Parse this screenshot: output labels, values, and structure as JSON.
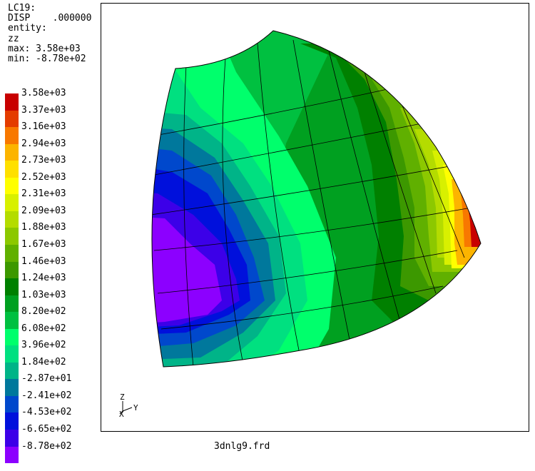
{
  "header": {
    "load_case": "LC19:",
    "disp_label": "DISP",
    "disp_value": ".000000",
    "entity_label": "entity:",
    "component": "zz",
    "max": "max: 3.58e+03",
    "min": "min: -8.78e+02"
  },
  "legend": [
    {
      "label": "3.58e+03",
      "color": "#c80000"
    },
    {
      "label": "3.37e+03",
      "color": "#e43c00"
    },
    {
      "label": "3.16e+03",
      "color": "#f87800"
    },
    {
      "label": "2.94e+03",
      "color": "#fcb400"
    },
    {
      "label": "2.73e+03",
      "color": "#ffe000"
    },
    {
      "label": "2.52e+03",
      "color": "#ffff00"
    },
    {
      "label": "2.31e+03",
      "color": "#d8f000"
    },
    {
      "label": "2.09e+03",
      "color": "#b4dc00"
    },
    {
      "label": "1.88e+03",
      "color": "#8cc800"
    },
    {
      "label": "1.67e+03",
      "color": "#60b000"
    },
    {
      "label": "1.46e+03",
      "color": "#3c9800"
    },
    {
      "label": "1.24e+03",
      "color": "#008000"
    },
    {
      "label": "1.03e+03",
      "color": "#00a020"
    },
    {
      "label": "8.20e+02",
      "color": "#00c040"
    },
    {
      "label": "6.08e+02",
      "color": "#00ff6c"
    },
    {
      "label": "3.96e+02",
      "color": "#00e080"
    },
    {
      "label": "1.84e+02",
      "color": "#00b488"
    },
    {
      "label": "-2.87e+01",
      "color": "#00789c"
    },
    {
      "label": "-2.41e+02",
      "color": "#0048cc"
    },
    {
      "label": "-4.53e+02",
      "color": "#0010dc"
    },
    {
      "label": "-6.65e+02",
      "color": "#3c00e8"
    },
    {
      "label": "-8.78e+02",
      "color": "#8c00ff"
    }
  ],
  "axes": {
    "z": "Z",
    "y": "Y",
    "x": "X"
  },
  "filename": "3dnlg9.frd"
}
